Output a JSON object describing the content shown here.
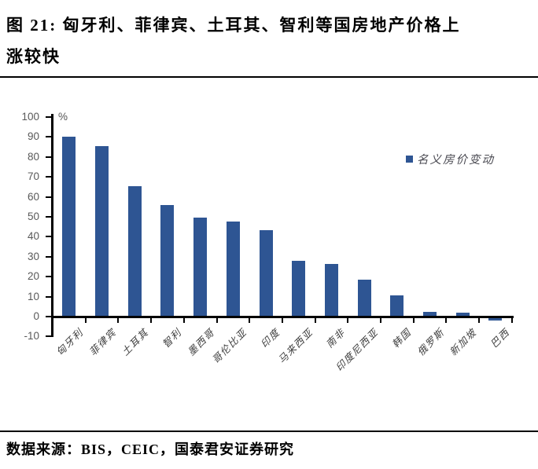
{
  "title": {
    "line1": "图 21: 匈牙利、菲律宾、土耳其、智利等国房地产价格上",
    "line2": "涨较快"
  },
  "footer": {
    "source": "数据来源：BIS，CEIC，国泰君安证券研究"
  },
  "chart_data": {
    "type": "bar",
    "title": "图 21: 匈牙利、菲律宾、土耳其、智利等国房地产价格上涨较快",
    "unit_label": "%",
    "legend": "名义房价变动",
    "legend_position": "upper-right",
    "categories": [
      "匈牙利",
      "菲律宾",
      "土耳其",
      "智利",
      "墨西哥",
      "哥伦比亚",
      "印度",
      "马来西亚",
      "南非",
      "印度尼西亚",
      "韩国",
      "俄罗斯",
      "新加坡",
      "巴西"
    ],
    "values": [
      90,
      85.5,
      65.5,
      56,
      49.5,
      47.5,
      43.5,
      28,
      26.5,
      18.5,
      10.5,
      2.5,
      2,
      -1
    ],
    "xlabel": "",
    "ylabel": "%",
    "ylim": [
      -10,
      100
    ],
    "ytick_interval": 10,
    "grid": false,
    "bar_color": "#2E5593",
    "axis_color": "#000000",
    "tick_label_color": "#595959"
  }
}
